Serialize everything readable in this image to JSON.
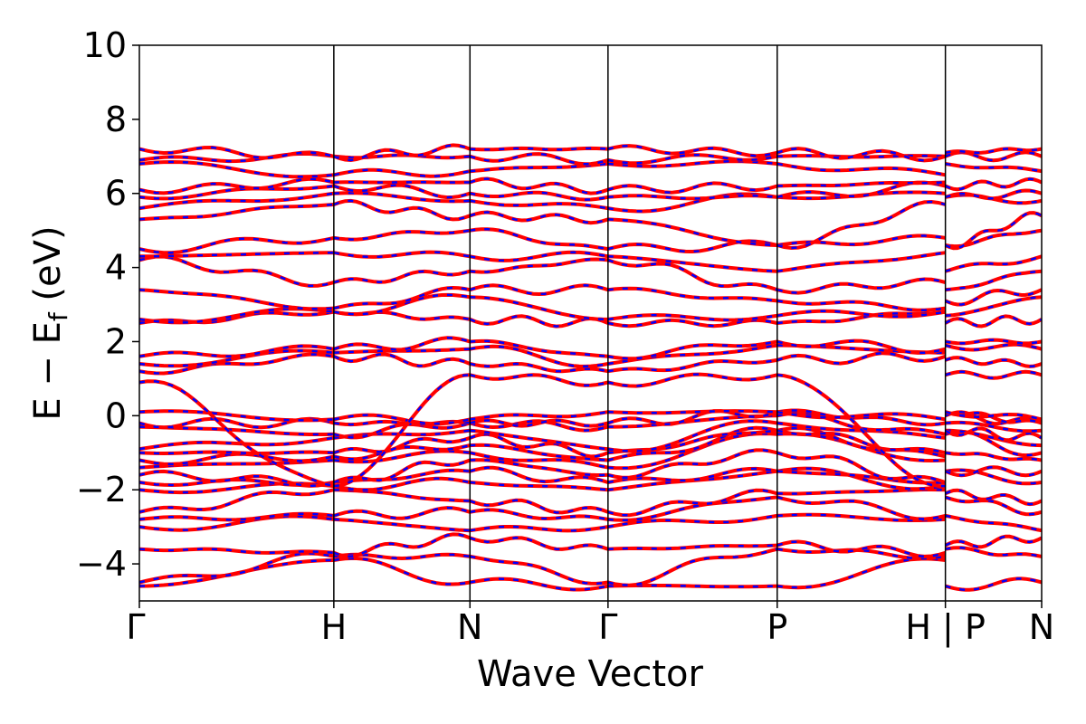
{
  "chart_data": {
    "type": "line",
    "title": "",
    "xlabel": "Wave Vector",
    "ylabel_main": "E − E",
    "ylabel_sub": "f",
    "ylabel_unit": " (eV)",
    "ylim": [
      -5,
      10
    ],
    "yticks": [
      {
        "value": -4,
        "label": "−4"
      },
      {
        "value": -2,
        "label": "−2"
      },
      {
        "value": 0,
        "label": "0"
      },
      {
        "value": 2,
        "label": "2"
      },
      {
        "value": 4,
        "label": "4"
      },
      {
        "value": 6,
        "label": "6"
      },
      {
        "value": 8,
        "label": "8"
      },
      {
        "value": 10,
        "label": "10"
      }
    ],
    "xlim": [
      0,
      4.64
    ],
    "kpoints": [
      {
        "position": 0.0,
        "label": "Γ"
      },
      {
        "position": 1.0,
        "label": "H"
      },
      {
        "position": 1.7,
        "label": "N"
      },
      {
        "position": 2.41,
        "label": "Γ"
      },
      {
        "position": 3.28,
        "label": "P"
      },
      {
        "position": 4.145,
        "label": "H | P"
      },
      {
        "position": 4.64,
        "label": "N"
      }
    ],
    "line_styles": {
      "solid_color": "#ff0000",
      "dashed_color": "#0000ff"
    },
    "segments": [
      {
        "from": "Γ",
        "to": "H",
        "start_energies": [
          -4.6,
          -4.5,
          -3.6,
          -3.0,
          -2.8,
          -2.6,
          -2.0,
          -1.8,
          -1.6,
          -1.4,
          -1.2,
          -1.0,
          -0.9,
          -0.3,
          -0.2,
          0.1,
          0.9,
          1.2,
          1.4,
          1.6,
          2.5,
          2.6,
          3.4,
          4.2,
          4.3,
          4.5,
          5.3,
          5.6,
          5.9,
          6.1,
          6.8,
          6.9,
          7.2
        ],
        "end_energies": [
          -3.9,
          -3.8,
          -3.7,
          -2.8,
          -2.7,
          -2.0,
          -1.9,
          -1.8,
          -1.8,
          -1.2,
          -1.1,
          -1.0,
          -0.6,
          -0.5,
          -0.2,
          -0.1,
          -1.9,
          1.6,
          1.7,
          1.8,
          2.8,
          2.8,
          2.9,
          3.6,
          4.4,
          4.8,
          5.7,
          6.0,
          6.2,
          6.3,
          6.5,
          7.0,
          7.0
        ]
      },
      {
        "from": "H",
        "to": "N",
        "start_energies": [
          -3.9,
          -3.8,
          -3.7,
          -2.8,
          -2.7,
          -2.0,
          -1.9,
          -1.8,
          -1.8,
          -1.2,
          -1.1,
          -1.0,
          -0.6,
          -0.5,
          -0.2,
          -0.1,
          -1.9,
          1.6,
          1.7,
          1.8,
          2.8,
          2.8,
          2.9,
          3.6,
          4.4,
          4.8,
          5.7,
          6.0,
          6.2,
          6.3,
          6.5,
          7.0,
          7.0
        ],
        "end_energies": [
          -4.5,
          -3.8,
          -3.3,
          -3.1,
          -2.6,
          -2.3,
          -1.8,
          -1.5,
          -1.2,
          -1.0,
          -0.8,
          -0.6,
          -0.4,
          -0.2,
          -0.2,
          -0.1,
          1.1,
          1.4,
          1.8,
          2.0,
          2.6,
          3.2,
          3.4,
          3.9,
          4.3,
          5.0,
          5.4,
          5.8,
          6.0,
          6.3,
          6.6,
          7.0,
          7.2
        ]
      },
      {
        "from": "N",
        "to": "Γ",
        "start_energies": [
          -4.5,
          -3.8,
          -3.3,
          -3.1,
          -2.6,
          -2.3,
          -1.8,
          -1.5,
          -1.2,
          -1.0,
          -0.8,
          -0.6,
          -0.4,
          -0.2,
          -0.2,
          -0.1,
          1.1,
          1.4,
          1.8,
          2.0,
          2.6,
          3.2,
          3.4,
          3.9,
          4.3,
          5.0,
          5.4,
          5.8,
          6.0,
          6.3,
          6.6,
          7.0,
          7.2
        ],
        "end_energies": [
          -4.6,
          -4.5,
          -3.6,
          -3.0,
          -2.8,
          -2.6,
          -2.0,
          -1.8,
          -1.6,
          -1.4,
          -1.2,
          -1.0,
          -0.9,
          -0.3,
          -0.2,
          0.1,
          0.9,
          1.2,
          1.4,
          1.6,
          2.5,
          2.6,
          3.4,
          4.2,
          4.3,
          4.5,
          5.3,
          5.6,
          5.9,
          6.1,
          6.8,
          6.9,
          7.2
        ]
      },
      {
        "from": "Γ",
        "to": "P",
        "start_energies": [
          -4.6,
          -4.5,
          -3.6,
          -3.0,
          -2.8,
          -2.6,
          -2.0,
          -1.8,
          -1.6,
          -1.4,
          -1.2,
          -1.0,
          -0.9,
          -0.3,
          -0.2,
          0.1,
          0.9,
          1.2,
          1.4,
          1.6,
          2.5,
          2.6,
          3.4,
          4.2,
          4.3,
          4.5,
          5.3,
          5.6,
          5.9,
          6.1,
          6.8,
          6.9,
          7.2
        ],
        "end_energies": [
          -4.6,
          -3.6,
          -3.5,
          -2.7,
          -2.2,
          -2.1,
          -1.5,
          -1.5,
          -1.0,
          -0.5,
          -0.4,
          -0.4,
          -0.2,
          0.0,
          0.1,
          0.1,
          1.1,
          1.5,
          1.9,
          2.0,
          2.5,
          2.7,
          3.1,
          3.4,
          3.9,
          4.6,
          4.6,
          5.9,
          5.9,
          6.2,
          6.8,
          7.0,
          7.1
        ]
      },
      {
        "from": "P",
        "to": "H",
        "start_energies": [
          -4.6,
          -3.6,
          -3.5,
          -2.7,
          -2.2,
          -2.1,
          -1.5,
          -1.5,
          -1.0,
          -0.5,
          -0.4,
          -0.4,
          -0.2,
          0.0,
          0.1,
          0.1,
          1.1,
          1.5,
          1.9,
          2.0,
          2.5,
          2.7,
          3.1,
          3.4,
          3.9,
          4.6,
          4.6,
          5.9,
          5.9,
          6.2,
          6.8,
          7.0,
          7.1
        ],
        "end_energies": [
          -3.9,
          -3.8,
          -3.7,
          -2.8,
          -2.7,
          -2.0,
          -1.9,
          -1.8,
          -1.8,
          -1.2,
          -1.1,
          -1.0,
          -0.6,
          -0.5,
          -0.2,
          -0.1,
          -1.9,
          1.6,
          1.7,
          1.8,
          2.8,
          2.8,
          2.9,
          3.6,
          4.4,
          4.8,
          5.7,
          6.0,
          6.2,
          6.3,
          6.5,
          7.0,
          7.0
        ]
      },
      {
        "from": "P",
        "to": "N",
        "start_energies": [
          -4.6,
          -3.6,
          -3.5,
          -2.7,
          -2.2,
          -2.1,
          -1.5,
          -1.5,
          -1.0,
          -0.5,
          -0.4,
          -0.4,
          -0.2,
          0.0,
          0.1,
          0.1,
          1.1,
          1.5,
          1.9,
          2.0,
          2.5,
          2.7,
          3.1,
          3.4,
          3.9,
          4.6,
          4.6,
          5.9,
          5.9,
          6.2,
          6.8,
          7.0,
          7.1
        ],
        "end_energies": [
          -4.5,
          -3.8,
          -3.3,
          -3.1,
          -2.6,
          -2.3,
          -1.8,
          -1.5,
          -1.2,
          -1.0,
          -0.8,
          -0.6,
          -0.4,
          -0.2,
          -0.2,
          -0.1,
          1.1,
          1.4,
          1.8,
          2.0,
          2.6,
          3.2,
          3.4,
          3.9,
          4.3,
          5.0,
          5.4,
          5.8,
          6.0,
          6.3,
          6.6,
          7.0,
          7.2
        ]
      }
    ]
  }
}
